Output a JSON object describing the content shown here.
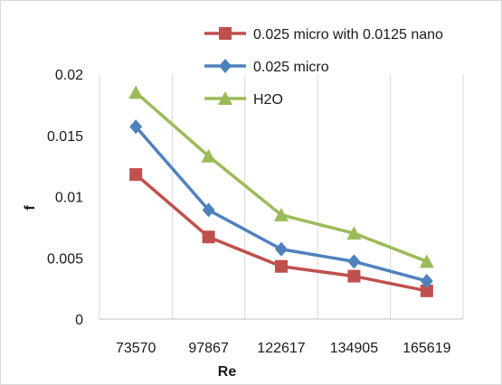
{
  "chart_data": {
    "type": "line",
    "categories": [
      "73570",
      "97867",
      "122617",
      "134905",
      "165619"
    ],
    "xlabel": "Re",
    "ylabel": "f",
    "ylim": [
      0,
      0.02
    ],
    "yticks": [
      "0",
      "0.005",
      "0.01",
      "0.015",
      "0.02"
    ],
    "grid": "vertical",
    "legend_position": "top-right",
    "series": [
      {
        "name": "0.025 micro with 0.0125 nano",
        "color": "#c0504d",
        "marker": "square",
        "values": [
          0.0118,
          0.0067,
          0.0043,
          0.0035,
          0.0023
        ]
      },
      {
        "name": "0.025 micro",
        "color": "#4f81bd",
        "marker": "diamond",
        "values": [
          0.0157,
          0.0089,
          0.0057,
          0.0047,
          0.0031
        ]
      },
      {
        "name": "H2O",
        "color": "#9bbb59",
        "marker": "triangle",
        "values": [
          0.0185,
          0.0133,
          0.0085,
          0.007,
          0.0047
        ]
      }
    ]
  }
}
